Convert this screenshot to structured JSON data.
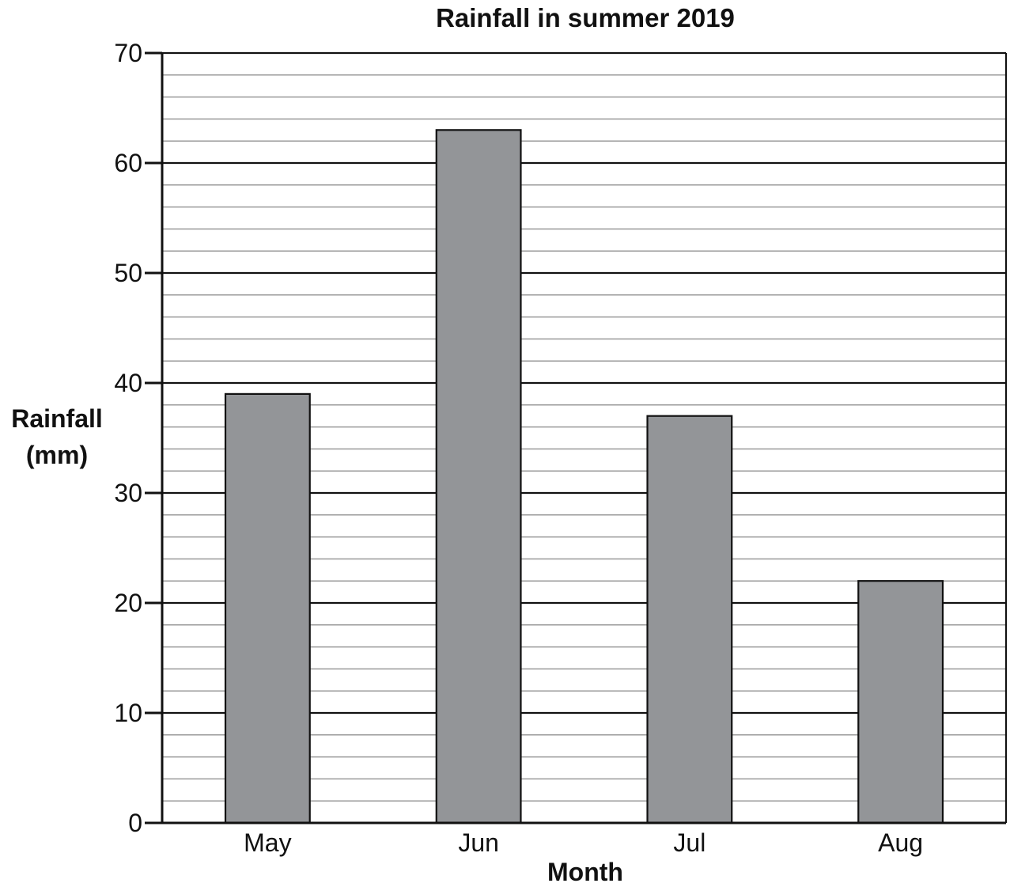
{
  "chart_data": {
    "type": "bar",
    "title": "Rainfall in summer 2019",
    "xlabel": "Month",
    "ylabel": [
      "Rainfall",
      "(mm)"
    ],
    "categories": [
      "May",
      "Jun",
      "Jul",
      "Aug"
    ],
    "values": [
      39,
      63,
      37,
      22
    ],
    "ylim": [
      0,
      70
    ],
    "y_major_step": 10,
    "y_minor_step": 2,
    "grid": true,
    "legend": "none",
    "bar_color": "#939598",
    "y_ticks": [
      "0",
      "10",
      "20",
      "30",
      "40",
      "50",
      "60",
      "70"
    ]
  }
}
